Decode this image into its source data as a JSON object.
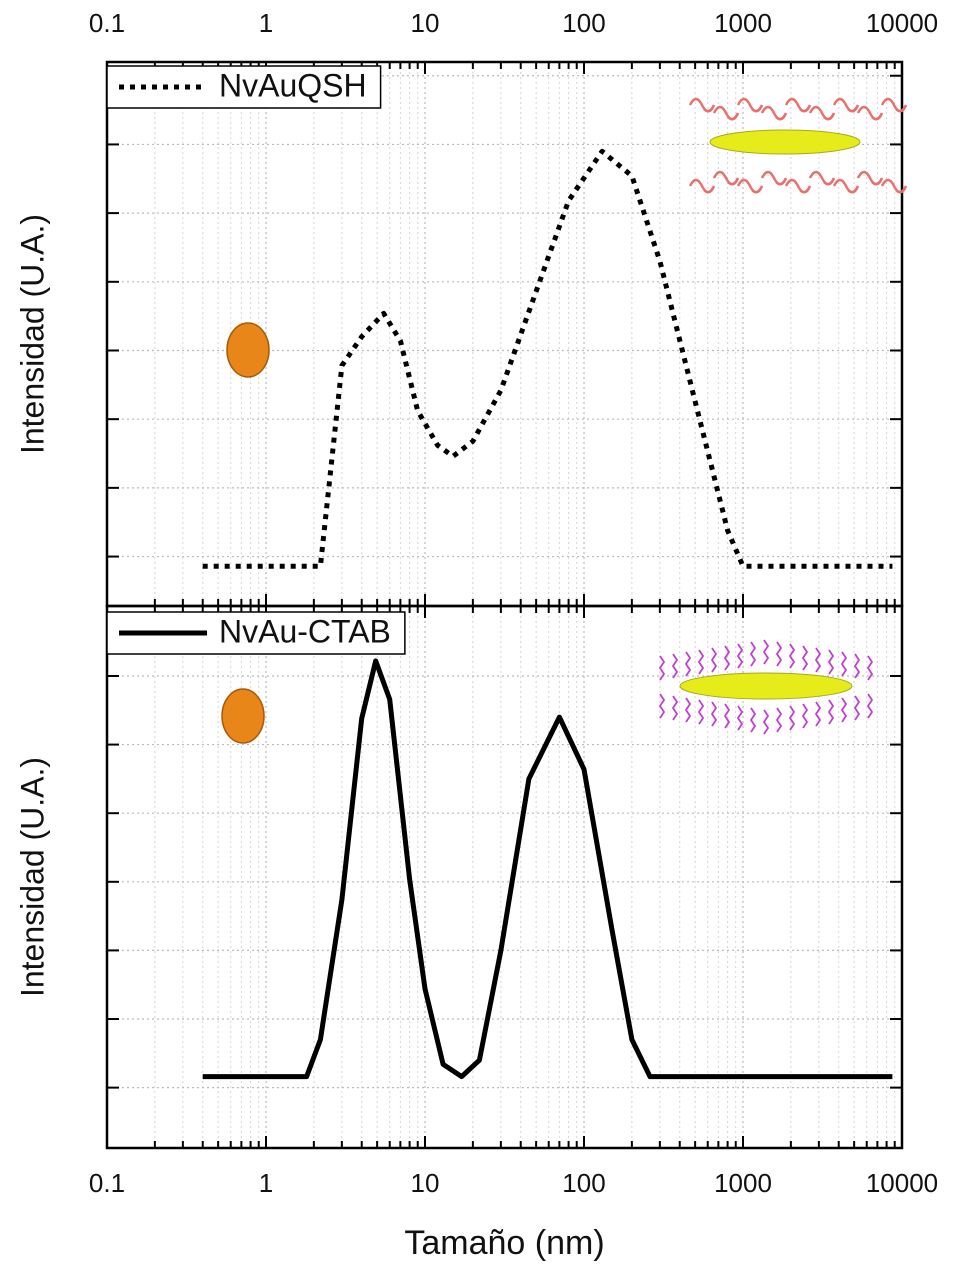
{
  "chart_data": [
    {
      "type": "line",
      "log_x": true,
      "grid": true,
      "xlim": [
        0.1,
        10000
      ],
      "xticks": [
        0.1,
        1,
        10,
        100,
        1000,
        10000
      ],
      "ylim": [
        -0.36,
        3.6
      ],
      "yticks": [
        0,
        0.5,
        1,
        1.5,
        2,
        2.5,
        3,
        3.5
      ],
      "ylabel": "Intensidad (U.A.)",
      "legend": "upper left",
      "series": [
        {
          "name": "NvAuQSH",
          "color": "#000000",
          "linestyle": "dotted",
          "x": [
            0.4,
            1,
            2.2,
            3,
            4,
            5.5,
            7,
            9,
            12,
            15,
            20,
            30,
            50,
            80,
            130,
            200,
            300,
            500,
            800,
            1000,
            2000,
            5000,
            8700
          ],
          "values": [
            -0.07,
            -0.07,
            -0.07,
            1.39,
            1.6,
            1.77,
            1.57,
            1.06,
            0.81,
            0.73,
            0.84,
            1.21,
            1.93,
            2.59,
            2.95,
            2.77,
            2.15,
            1.13,
            0.19,
            -0.07,
            -0.07,
            -0.07,
            -0.07
          ]
        }
      ]
    },
    {
      "type": "line",
      "log_x": true,
      "grid": true,
      "xlim": [
        0.1,
        10000
      ],
      "xticks": [
        0.1,
        1,
        10,
        100,
        1000,
        10000
      ],
      "ylim": [
        -0.44,
        3.51
      ],
      "yticks": [
        0,
        0.5,
        1,
        1.5,
        2,
        2.5,
        3
      ],
      "xlabel": "Tamaño (nm)",
      "ylabel": "Intensidad (U.A.)",
      "legend": "upper left",
      "series": [
        {
          "name": "NvAu-CTAB",
          "color": "#000000",
          "linestyle": "solid",
          "x": [
            0.4,
            1,
            1.8,
            2.2,
            3,
            4,
            4.9,
            6,
            8,
            10,
            13,
            17,
            22,
            30,
            45,
            70,
            100,
            150,
            200,
            260,
            1000,
            8700
          ],
          "values": [
            0.08,
            0.08,
            0.08,
            0.35,
            1.37,
            2.69,
            3.11,
            2.83,
            1.52,
            0.72,
            0.17,
            0.08,
            0.2,
            1.0,
            2.25,
            2.7,
            2.32,
            1.15,
            0.35,
            0.08,
            0.08,
            0.08
          ]
        }
      ]
    }
  ]
}
